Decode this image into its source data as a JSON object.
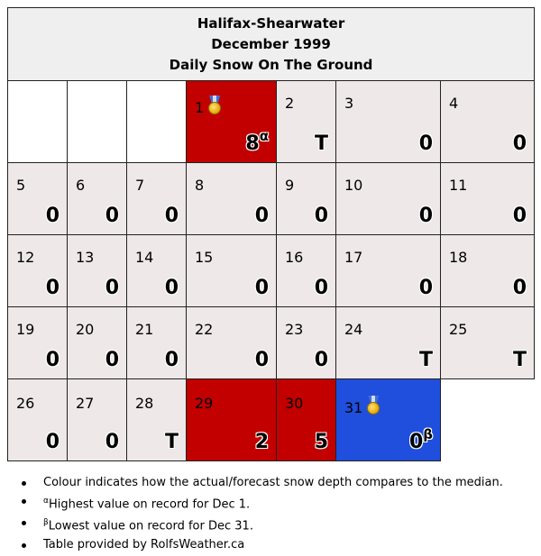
{
  "header": {
    "station": "Halifax-Shearwater",
    "month": "December 1999",
    "title": "Daily Snow On The Ground"
  },
  "days": {
    "d1": {
      "day": "1",
      "value": "8",
      "mark": "α",
      "status": "above",
      "medal": "gold-medal"
    },
    "d2": {
      "day": "2",
      "value": "T"
    },
    "d3": {
      "day": "3",
      "value": "0"
    },
    "d4": {
      "day": "4",
      "value": "0"
    },
    "d5": {
      "day": "5",
      "value": "0"
    },
    "d6": {
      "day": "6",
      "value": "0"
    },
    "d7": {
      "day": "7",
      "value": "0"
    },
    "d8": {
      "day": "8",
      "value": "0"
    },
    "d9": {
      "day": "9",
      "value": "0"
    },
    "d10": {
      "day": "10",
      "value": "0"
    },
    "d11": {
      "day": "11",
      "value": "0"
    },
    "d12": {
      "day": "12",
      "value": "0"
    },
    "d13": {
      "day": "13",
      "value": "0"
    },
    "d14": {
      "day": "14",
      "value": "0"
    },
    "d15": {
      "day": "15",
      "value": "0"
    },
    "d16": {
      "day": "16",
      "value": "0"
    },
    "d17": {
      "day": "17",
      "value": "0"
    },
    "d18": {
      "day": "18",
      "value": "0"
    },
    "d19": {
      "day": "19",
      "value": "0"
    },
    "d20": {
      "day": "20",
      "value": "0"
    },
    "d21": {
      "day": "21",
      "value": "0"
    },
    "d22": {
      "day": "22",
      "value": "0"
    },
    "d23": {
      "day": "23",
      "value": "0"
    },
    "d24": {
      "day": "24",
      "value": "T"
    },
    "d25": {
      "day": "25",
      "value": "T"
    },
    "d26": {
      "day": "26",
      "value": "0"
    },
    "d27": {
      "day": "27",
      "value": "0"
    },
    "d28": {
      "day": "28",
      "value": "T"
    },
    "d29": {
      "day": "29",
      "value": "2",
      "status": "above"
    },
    "d30": {
      "day": "30",
      "value": "5",
      "status": "above"
    },
    "d31": {
      "day": "31",
      "value": "0",
      "mark": "β",
      "status": "below",
      "medal": "gold-medal"
    }
  },
  "colors": {
    "above_median": "#c20000",
    "below_median": "#1f4fdc",
    "normal": "#eee8e8",
    "header_bg": "#efefef"
  },
  "notes": {
    "n1": "Colour indicates how the actual/forecast snow depth compares to the median.",
    "n2_mark": "α",
    "n2_text": "Highest value on record for Dec 1.",
    "n3_mark": "β",
    "n3_text": "Lowest value on record for Dec 31.",
    "n4": "Table provided by RolfsWeather.ca"
  }
}
